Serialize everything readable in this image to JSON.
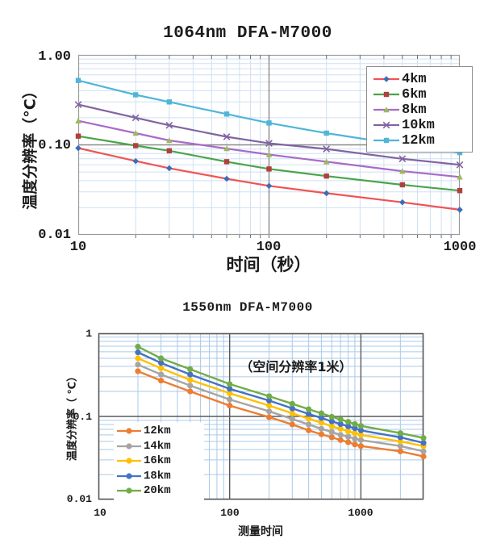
{
  "page": {
    "background": "#ffffff"
  },
  "chart_data": [
    {
      "type": "line",
      "title": "1064nm DFA-M7000",
      "xlabel": "时间（秒）",
      "ylabel": "温度分辨率（°C）",
      "x_scale": "log",
      "y_scale": "log",
      "xlim": [
        10,
        1000
      ],
      "ylim": [
        0.01,
        1.0
      ],
      "x_ticks": [
        "10",
        "100",
        "1000"
      ],
      "y_ticks": [
        "1.00",
        "0.10",
        "0.01"
      ],
      "x_major_gridlines": [
        100
      ],
      "y_major_gridlines": [
        0.1
      ],
      "grid": {
        "minor_color": "#cfe0f2",
        "major_color": "#8a8a8a",
        "border_color": "#9a9a9a"
      },
      "legend_position": "top-right",
      "x": [
        10,
        20,
        30,
        60,
        100,
        200,
        500,
        1000
      ],
      "series": [
        {
          "name": "4km",
          "line_color": "#f15353",
          "marker": "diamond",
          "marker_color": "#3e6db8",
          "values": [
            0.092,
            0.066,
            0.055,
            0.042,
            0.035,
            0.029,
            0.023,
            0.019
          ]
        },
        {
          "name": "6km",
          "line_color": "#4aa44a",
          "marker": "square",
          "marker_color": "#b23e3e",
          "values": [
            0.125,
            0.098,
            0.086,
            0.065,
            0.054,
            0.045,
            0.036,
            0.031
          ]
        },
        {
          "name": "8km",
          "line_color": "#a96bc8",
          "marker": "triangle",
          "marker_color": "#9bbb59",
          "values": [
            0.185,
            0.135,
            0.112,
            0.091,
            0.078,
            0.065,
            0.051,
            0.044
          ]
        },
        {
          "name": "10km",
          "line_color": "#8064a2",
          "marker": "x",
          "marker_color": "#8064a2",
          "values": [
            0.28,
            0.2,
            0.165,
            0.123,
            0.104,
            0.09,
            0.07,
            0.06
          ]
        },
        {
          "name": "12km",
          "line_color": "#4fb6d8",
          "marker": "square",
          "marker_color": "#4fb6d8",
          "values": [
            0.52,
            0.36,
            0.3,
            0.22,
            0.175,
            0.135,
            0.1,
            0.082
          ]
        }
      ]
    },
    {
      "type": "line",
      "title": "1550nm DFA-M7000",
      "annotation": "（空间分辨率1米）",
      "xlabel": "测量时间",
      "ylabel": "温度分辨率（ ℃）",
      "x_scale": "log",
      "y_scale": "log",
      "xlim": [
        10,
        3000
      ],
      "ylim": [
        0.01,
        1.0
      ],
      "x_ticks": [
        "10",
        "100",
        "1000"
      ],
      "y_ticks": [
        "1",
        "0.1",
        "0.01"
      ],
      "x_major_gridlines": [
        100,
        1000
      ],
      "y_major_gridlines": [
        0.1
      ],
      "grid": {
        "minor_color": "#aac9e8",
        "major_color": "#5a5a5a",
        "border_color": "#555555"
      },
      "legend_position": "bottom-left",
      "x": [
        20,
        30,
        50,
        100,
        200,
        300,
        400,
        500,
        600,
        700,
        800,
        900,
        1000,
        2000,
        3000
      ],
      "series": [
        {
          "name": "12km",
          "line_color": "#ED7D31",
          "marker": "circle",
          "marker_color": "#ED7D31",
          "values": [
            0.35,
            0.27,
            0.2,
            0.135,
            0.098,
            0.08,
            0.068,
            0.061,
            0.056,
            0.052,
            0.049,
            0.046,
            0.044,
            0.038,
            0.033
          ]
        },
        {
          "name": "14km",
          "line_color": "#A5A5A5",
          "marker": "circle",
          "marker_color": "#A5A5A5",
          "values": [
            0.42,
            0.32,
            0.235,
            0.16,
            0.115,
            0.093,
            0.08,
            0.071,
            0.065,
            0.06,
            0.057,
            0.054,
            0.052,
            0.044,
            0.038
          ]
        },
        {
          "name": "16km",
          "line_color": "#FFC000",
          "marker": "circle",
          "marker_color": "#FFC000",
          "values": [
            0.5,
            0.38,
            0.275,
            0.19,
            0.135,
            0.109,
            0.094,
            0.084,
            0.076,
            0.071,
            0.066,
            0.063,
            0.06,
            0.05,
            0.044
          ]
        },
        {
          "name": "18km",
          "line_color": "#4472C4",
          "marker": "circle",
          "marker_color": "#4472C4",
          "values": [
            0.59,
            0.44,
            0.32,
            0.215,
            0.155,
            0.125,
            0.107,
            0.096,
            0.087,
            0.081,
            0.076,
            0.072,
            0.068,
            0.056,
            0.048
          ]
        },
        {
          "name": "20km",
          "line_color": "#70AD47",
          "marker": "circle",
          "marker_color": "#70AD47",
          "values": [
            0.69,
            0.5,
            0.37,
            0.245,
            0.175,
            0.142,
            0.122,
            0.109,
            0.099,
            0.092,
            0.086,
            0.081,
            0.077,
            0.063,
            0.055
          ]
        }
      ]
    }
  ]
}
